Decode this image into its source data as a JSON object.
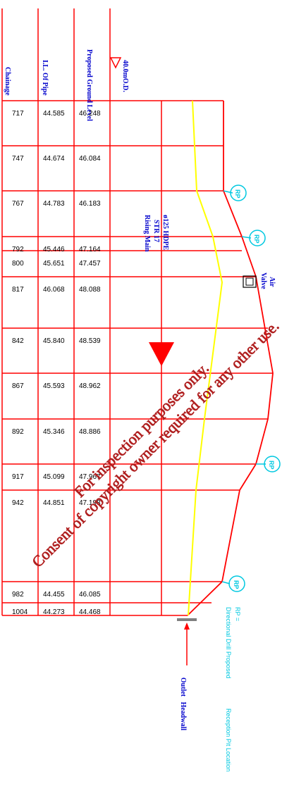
{
  "headers": {
    "chainage": "Chainage",
    "il": "I.L. Of Pipe",
    "pgl": "Proposed Ground Level",
    "datum": "40.0mO.D."
  },
  "pipe_label": {
    "line1": "ø125 HDPE",
    "line2": "STR 17",
    "line3": "Rising Main"
  },
  "rows": [
    {
      "chainage": "717",
      "il": "44.585",
      "pgl": "46.248"
    },
    {
      "chainage": "747",
      "il": "44.674",
      "pgl": "46.084"
    },
    {
      "chainage": "767",
      "il": "44.783",
      "pgl": "46.183"
    },
    {
      "chainage": "792",
      "il": "45.446",
      "pgl": "47.164"
    },
    {
      "chainage": "800",
      "il": "45.651",
      "pgl": "47.457"
    },
    {
      "chainage": "817",
      "il": "46.068",
      "pgl": "48.088"
    },
    {
      "chainage": "842",
      "il": "45.840",
      "pgl": "48.539"
    },
    {
      "chainage": "867",
      "il": "45.593",
      "pgl": "48.962"
    },
    {
      "chainage": "892",
      "il": "45.346",
      "pgl": "48.886"
    },
    {
      "chainage": "917",
      "il": "45.099",
      "pgl": "47.967"
    },
    {
      "chainage": "942",
      "il": "44.851",
      "pgl": "47.198"
    },
    {
      "chainage": "982",
      "il": "44.455",
      "pgl": "46.085"
    },
    {
      "chainage": "1004",
      "il": "44.273",
      "pgl": "44.468"
    }
  ],
  "markers": {
    "rp_label": "RP",
    "air_valve_line1": "Air",
    "air_valve_line2": "Valve",
    "outlet_line1": "Outlet",
    "outlet_line2": "Headwall"
  },
  "legend": {
    "line1": "RP =",
    "line2": "Directional Drill Proposed",
    "line3": "Reception Pit Location"
  },
  "watermark": {
    "line1": "For inspection purposes only.",
    "line2": "Consent of copyright owner required for any other use."
  },
  "colors": {
    "grid": "#ff0000",
    "ground_line": "#ff0000",
    "pipe_line": "#ffff00",
    "header_text": "#0000cc",
    "rp_marker": "#00c8e0",
    "watermark": "#b02020"
  }
}
